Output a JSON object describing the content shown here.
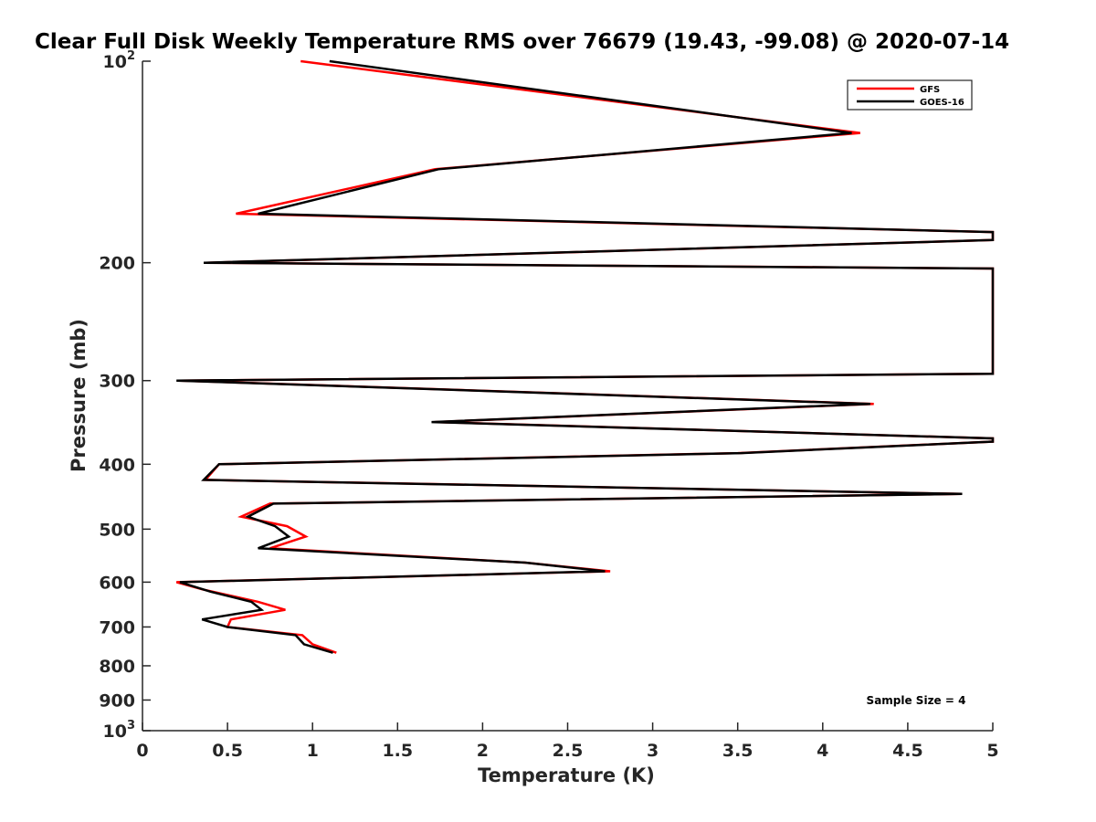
{
  "chart_data": {
    "type": "line",
    "title": "Clear Full Disk Weekly Temperature RMS over 76679 (19.43, -99.08) @ 2020-07-14",
    "xlabel": "Temperature (K)",
    "ylabel": "Pressure (mb)",
    "xlim": [
      0,
      5
    ],
    "ylim": [
      100,
      1000
    ],
    "y_scale": "log",
    "y_reversed": true,
    "grid": false,
    "legend_position": "top-right",
    "x_ticks": [
      {
        "value": 0,
        "label": "0"
      },
      {
        "value": 0.5,
        "label": "0.5"
      },
      {
        "value": 1,
        "label": "1"
      },
      {
        "value": 1.5,
        "label": "1.5"
      },
      {
        "value": 2,
        "label": "2"
      },
      {
        "value": 2.5,
        "label": "2.5"
      },
      {
        "value": 3,
        "label": "3"
      },
      {
        "value": 3.5,
        "label": "3.5"
      },
      {
        "value": 4,
        "label": "4"
      },
      {
        "value": 4.5,
        "label": "4.5"
      },
      {
        "value": 5,
        "label": "5"
      }
    ],
    "y_ticks": [
      {
        "value": 100,
        "label": "10",
        "sup": "2"
      },
      {
        "value": 200,
        "label": "200",
        "sup": ""
      },
      {
        "value": 300,
        "label": "300",
        "sup": ""
      },
      {
        "value": 400,
        "label": "400",
        "sup": ""
      },
      {
        "value": 500,
        "label": "500",
        "sup": ""
      },
      {
        "value": 600,
        "label": "600",
        "sup": ""
      },
      {
        "value": 700,
        "label": "700",
        "sup": ""
      },
      {
        "value": 800,
        "label": "800",
        "sup": ""
      },
      {
        "value": 900,
        "label": "900",
        "sup": ""
      },
      {
        "value": 1000,
        "label": "10",
        "sup": "3"
      }
    ],
    "series": [
      {
        "name": "GFS",
        "color": "#ff0000",
        "points": [
          [
            0.93,
            100
          ],
          [
            4.22,
            128
          ],
          [
            1.72,
            145
          ],
          [
            0.55,
            169
          ],
          [
            5.0,
            180
          ],
          [
            5.0,
            185
          ],
          [
            0.38,
            200
          ],
          [
            5.0,
            204
          ],
          [
            5.0,
            293
          ],
          [
            0.22,
            300
          ],
          [
            4.3,
            325
          ],
          [
            1.72,
            346
          ],
          [
            5.0,
            366
          ],
          [
            5.0,
            370
          ],
          [
            3.5,
            385
          ],
          [
            0.45,
            400
          ],
          [
            0.37,
            422
          ],
          [
            4.82,
            443
          ],
          [
            0.75,
            458
          ],
          [
            0.58,
            479
          ],
          [
            0.85,
            495
          ],
          [
            0.96,
            513
          ],
          [
            0.75,
            534
          ],
          [
            2.25,
            561
          ],
          [
            2.75,
            578
          ],
          [
            0.2,
            600
          ],
          [
            0.35,
            615
          ],
          [
            0.68,
            642
          ],
          [
            0.84,
            660
          ],
          [
            0.52,
            682
          ],
          [
            0.5,
            700
          ],
          [
            0.94,
            720
          ],
          [
            1.0,
            743
          ],
          [
            1.14,
            765
          ]
        ]
      },
      {
        "name": "GOES-16",
        "color": "#000000",
        "points": [
          [
            1.1,
            100
          ],
          [
            4.17,
            128
          ],
          [
            1.74,
            145
          ],
          [
            0.68,
            169
          ],
          [
            5.0,
            180
          ],
          [
            5.0,
            185
          ],
          [
            0.36,
            200
          ],
          [
            5.0,
            204
          ],
          [
            5.0,
            293
          ],
          [
            0.2,
            300
          ],
          [
            4.28,
            325
          ],
          [
            1.7,
            346
          ],
          [
            5.0,
            366
          ],
          [
            5.0,
            370
          ],
          [
            3.52,
            385
          ],
          [
            0.45,
            400
          ],
          [
            0.36,
            422
          ],
          [
            4.82,
            443
          ],
          [
            0.77,
            458
          ],
          [
            0.62,
            479
          ],
          [
            0.78,
            495
          ],
          [
            0.86,
            513
          ],
          [
            0.68,
            534
          ],
          [
            2.25,
            561
          ],
          [
            2.72,
            578
          ],
          [
            0.22,
            600
          ],
          [
            0.4,
            620
          ],
          [
            0.64,
            642
          ],
          [
            0.7,
            660
          ],
          [
            0.35,
            682
          ],
          [
            0.5,
            700
          ],
          [
            0.9,
            720
          ],
          [
            0.95,
            743
          ],
          [
            1.12,
            765
          ]
        ]
      }
    ],
    "annotations": [
      {
        "text": "Sample Size = 4"
      }
    ]
  }
}
